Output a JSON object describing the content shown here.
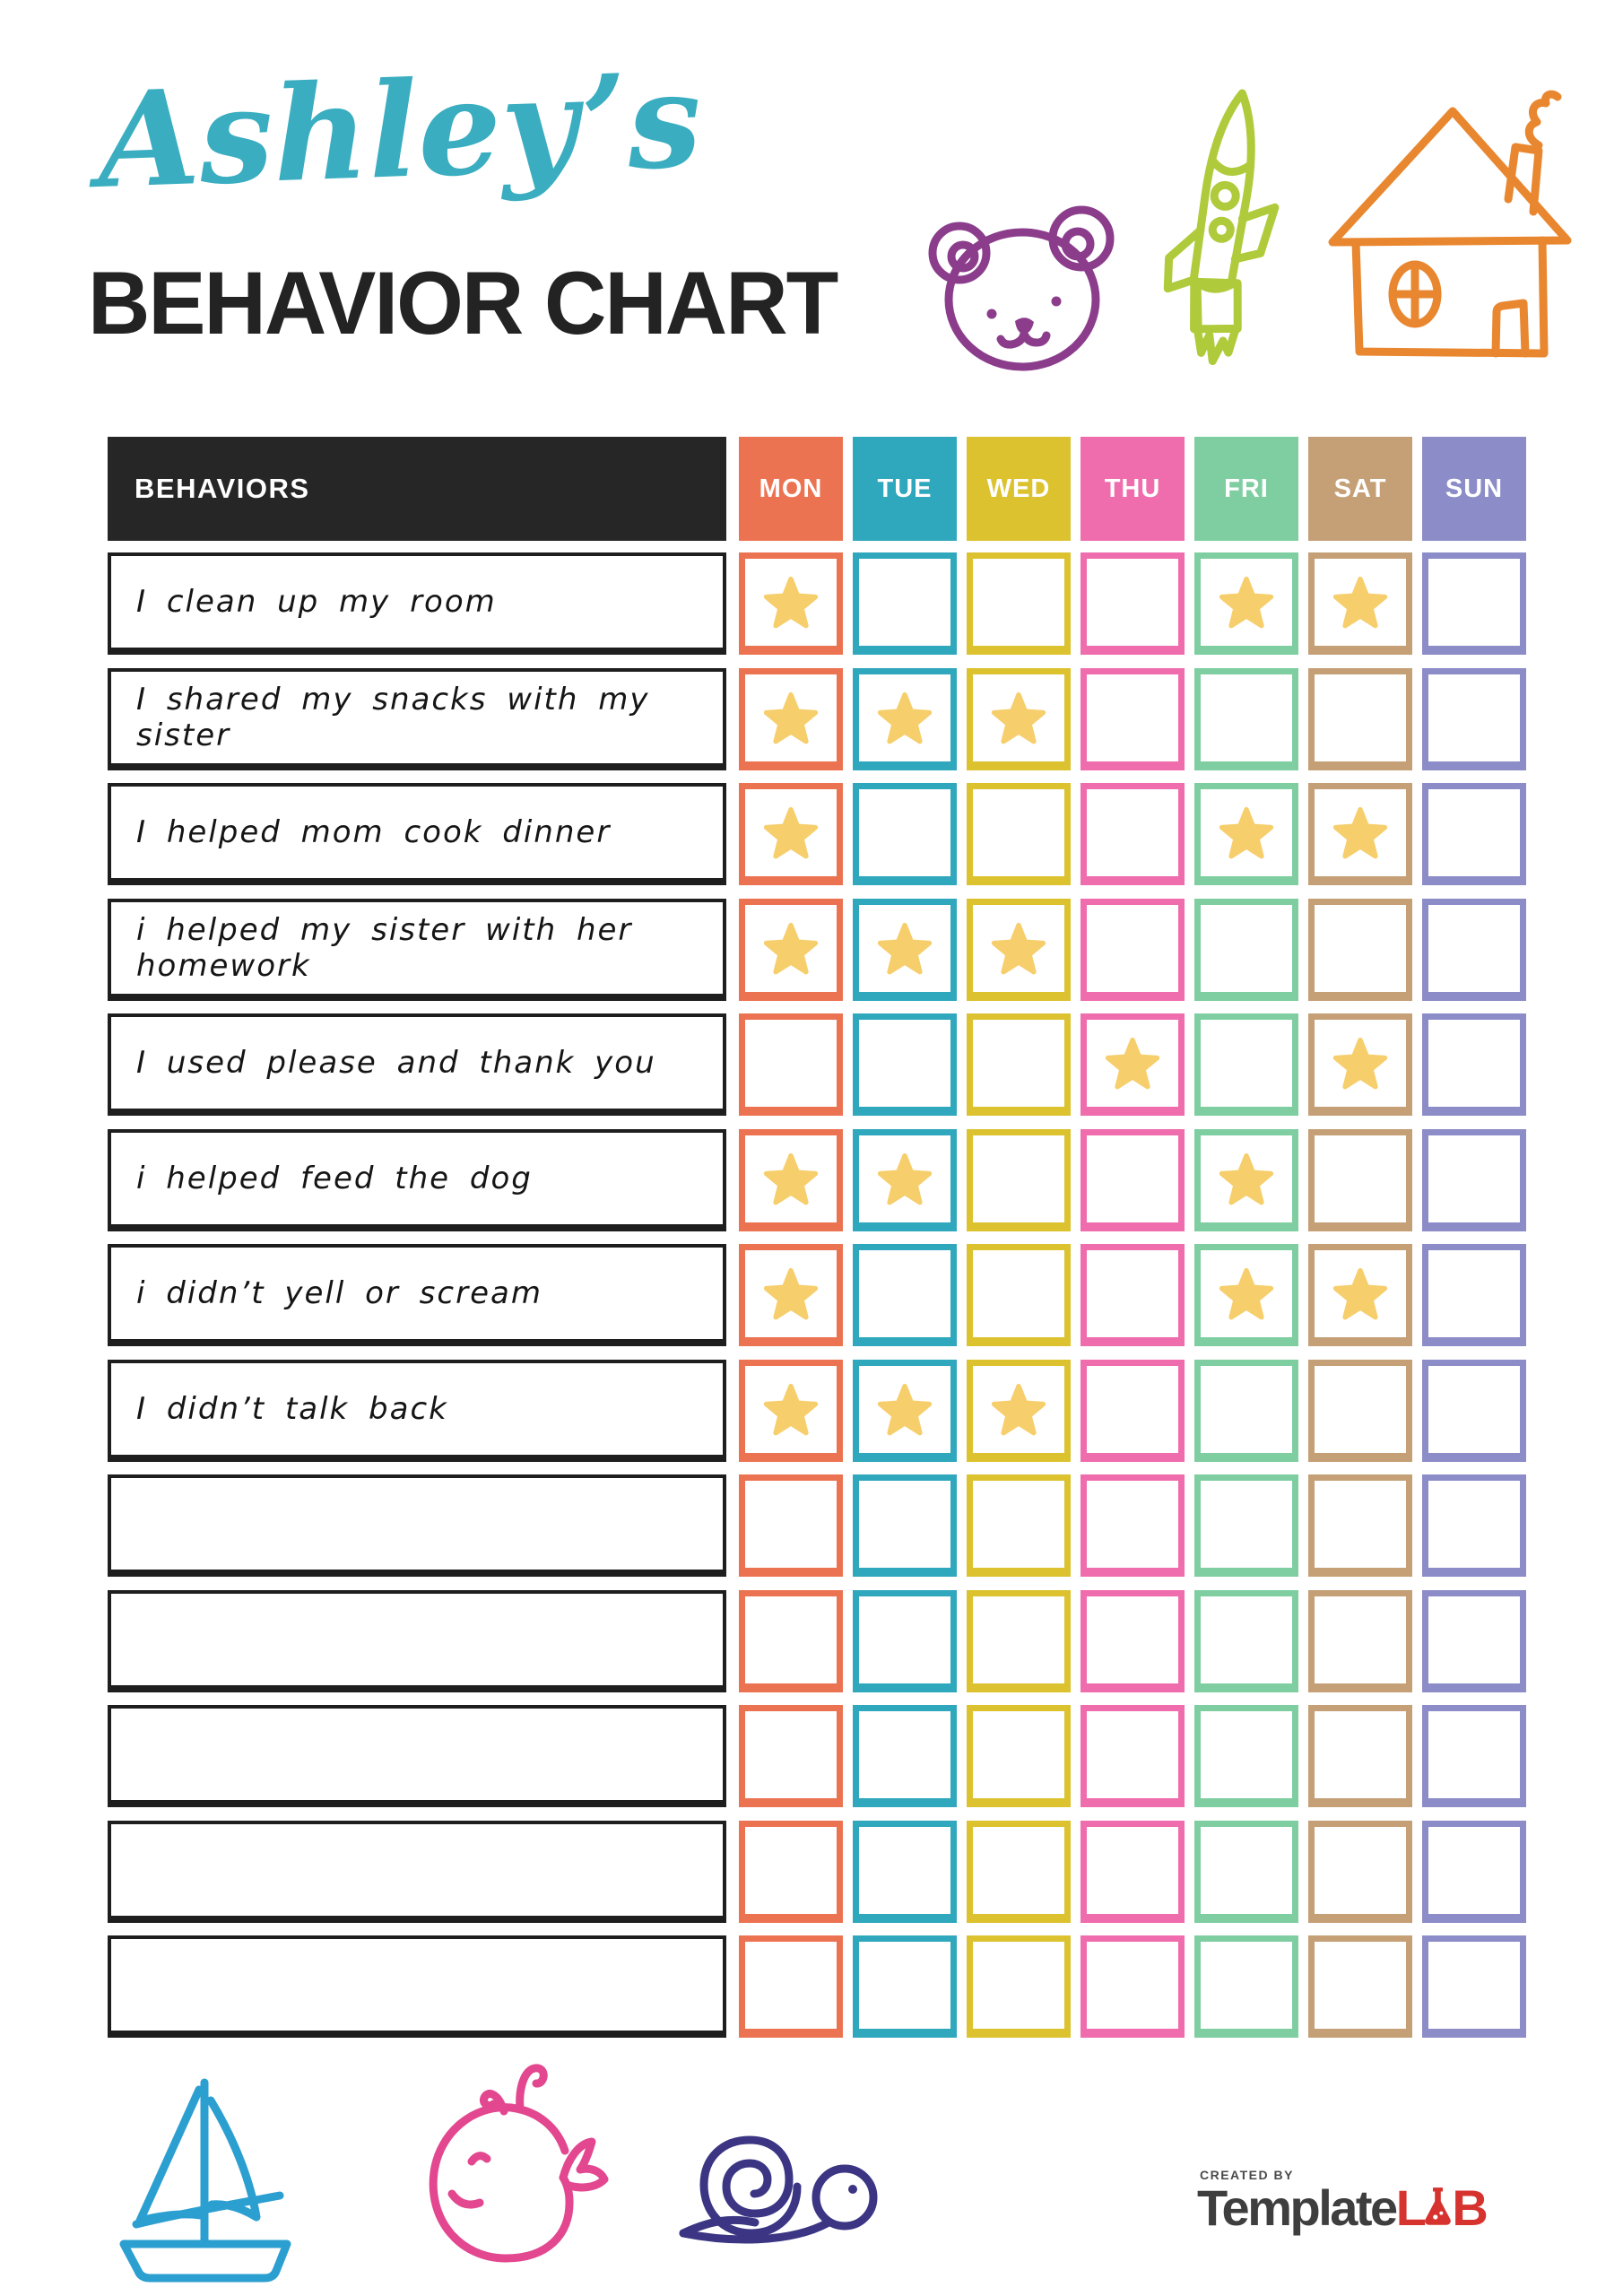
{
  "header": {
    "name": "Ashley’s",
    "title": "BEHAVIOR CHART",
    "name_color": "#3AAEC0",
    "title_color": "#232323"
  },
  "decorations": {
    "top_icons": [
      "bear-doodle",
      "rocket-doodle",
      "house-doodle"
    ],
    "bottom_icons": [
      "sailboat-doodle",
      "whale-doodle",
      "snail-doodle"
    ],
    "colors": {
      "bear": "#8B3D8C",
      "rocket": "#AFCB3B",
      "house": "#E8872F",
      "sailboat": "#2C9FD1",
      "whale": "#E2478F",
      "snail": "#3B3583"
    }
  },
  "table": {
    "behaviors_header": "BEHAVIORS",
    "header_bg": "#262626",
    "star_color": "#F6CE6B",
    "days": [
      {
        "label": "MON",
        "color": "#EC7352"
      },
      {
        "label": "TUE",
        "color": "#2FA7BC"
      },
      {
        "label": "WED",
        "color": "#DCC22F"
      },
      {
        "label": "THU",
        "color": "#EF6CAD"
      },
      {
        "label": "FRI",
        "color": "#7FCEA1"
      },
      {
        "label": "SAT",
        "color": "#C5A077"
      },
      {
        "label": "SUN",
        "color": "#8C8CC8"
      }
    ],
    "rows": [
      {
        "behavior": "I clean up my room",
        "stars": [
          1,
          0,
          0,
          0,
          1,
          1,
          0
        ]
      },
      {
        "behavior": "I shared my snacks with my sister",
        "stars": [
          1,
          1,
          1,
          0,
          0,
          0,
          0
        ]
      },
      {
        "behavior": "I helped mom cook dinner",
        "stars": [
          1,
          0,
          0,
          0,
          1,
          1,
          0
        ]
      },
      {
        "behavior": "i helped my sister with her homework",
        "stars": [
          1,
          1,
          1,
          0,
          0,
          0,
          0
        ]
      },
      {
        "behavior": "I used please and thank you",
        "stars": [
          0,
          0,
          0,
          1,
          0,
          1,
          0
        ]
      },
      {
        "behavior": "i helped feed the dog",
        "stars": [
          1,
          1,
          0,
          0,
          1,
          0,
          0
        ]
      },
      {
        "behavior": "i didn’t yell or scream",
        "stars": [
          1,
          0,
          0,
          0,
          1,
          1,
          0
        ]
      },
      {
        "behavior": "I didn’t talk back",
        "stars": [
          1,
          1,
          1,
          0,
          0,
          0,
          0
        ]
      },
      {
        "behavior": "",
        "stars": [
          0,
          0,
          0,
          0,
          0,
          0,
          0
        ]
      },
      {
        "behavior": "",
        "stars": [
          0,
          0,
          0,
          0,
          0,
          0,
          0
        ]
      },
      {
        "behavior": "",
        "stars": [
          0,
          0,
          0,
          0,
          0,
          0,
          0
        ]
      },
      {
        "behavior": "",
        "stars": [
          0,
          0,
          0,
          0,
          0,
          0,
          0
        ]
      },
      {
        "behavior": "",
        "stars": [
          0,
          0,
          0,
          0,
          0,
          0,
          0
        ]
      }
    ]
  },
  "footer": {
    "created_by": "CREATED BY",
    "brand_template": "Template",
    "brand_lab": "LAB",
    "brand_color_dark": "#3E3E3E",
    "brand_color_red": "#D6332F"
  }
}
